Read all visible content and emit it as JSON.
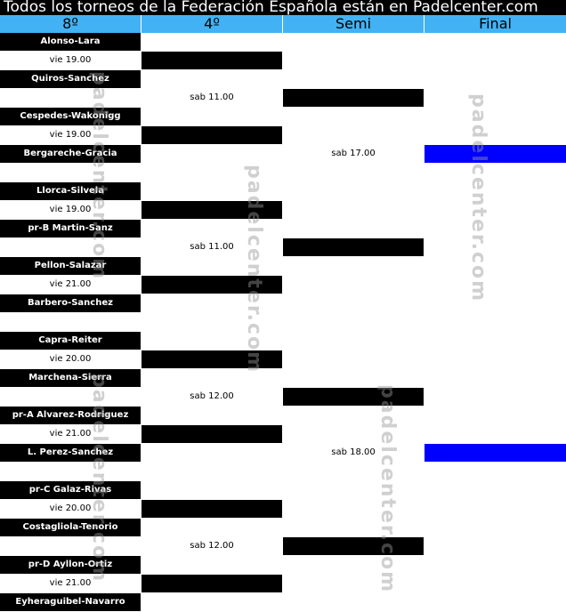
{
  "title": "Todos los torneos de la Federación Española están en Padelcenter.com",
  "columns": [
    "8º",
    "4º",
    "Semi",
    "Final"
  ],
  "watermark": "padelcenter.com",
  "colors": {
    "header_bg": "#42b2f4",
    "team_bg": "#000000",
    "final_bar": "#0000ff"
  },
  "rows": [
    [
      {
        "t": "team",
        "v": "Alonso-Lara"
      },
      {},
      {},
      {}
    ],
    [
      {
        "t": "time",
        "v": "vie 19.00"
      },
      {
        "t": "bar"
      },
      {},
      {}
    ],
    [
      {
        "t": "team",
        "v": "Quiros-Sanchez"
      },
      {},
      {},
      {}
    ],
    [
      {},
      {
        "t": "time",
        "v": "sab 11.00"
      },
      {
        "t": "bar"
      },
      {}
    ],
    [
      {
        "t": "team",
        "v": "Cespedes-Wakonigg"
      },
      {},
      {},
      {}
    ],
    [
      {
        "t": "time",
        "v": "vie 19.00"
      },
      {
        "t": "bar"
      },
      {},
      {}
    ],
    [
      {
        "t": "team",
        "v": "Bergareche-Gracia"
      },
      {},
      {
        "t": "time",
        "v": "sab 17.00"
      },
      {
        "t": "final"
      }
    ],
    [
      {},
      {},
      {},
      {}
    ],
    [
      {
        "t": "team",
        "v": "Llorca-Silvela"
      },
      {},
      {},
      {}
    ],
    [
      {
        "t": "time",
        "v": "vie 19.00"
      },
      {
        "t": "bar"
      },
      {},
      {}
    ],
    [
      {
        "t": "team",
        "v": "pr-B Martin-Sanz"
      },
      {},
      {},
      {}
    ],
    [
      {},
      {
        "t": "time",
        "v": "sab 11.00"
      },
      {
        "t": "bar"
      },
      {}
    ],
    [
      {
        "t": "team",
        "v": "Pellon-Salazar"
      },
      {},
      {},
      {}
    ],
    [
      {
        "t": "time",
        "v": "vie 21.00"
      },
      {
        "t": "bar"
      },
      {},
      {}
    ],
    [
      {
        "t": "team",
        "v": "Barbero-Sanchez"
      },
      {},
      {},
      {}
    ],
    [
      {},
      {},
      {},
      {}
    ],
    [
      {
        "t": "team",
        "v": "Capra-Reiter"
      },
      {},
      {},
      {}
    ],
    [
      {
        "t": "time",
        "v": "vie 20.00"
      },
      {
        "t": "bar"
      },
      {},
      {}
    ],
    [
      {
        "t": "team",
        "v": "Marchena-Sierra"
      },
      {},
      {},
      {}
    ],
    [
      {},
      {
        "t": "time",
        "v": "sab 12.00"
      },
      {
        "t": "bar"
      },
      {}
    ],
    [
      {
        "t": "team",
        "v": "pr-A Alvarez-Rodriguez"
      },
      {},
      {},
      {}
    ],
    [
      {
        "t": "time",
        "v": "vie 21.00"
      },
      {
        "t": "bar"
      },
      {},
      {}
    ],
    [
      {
        "t": "team",
        "v": "L. Perez-Sanchez"
      },
      {},
      {
        "t": "time",
        "v": "sab 18.00"
      },
      {
        "t": "final"
      }
    ],
    [
      {},
      {},
      {},
      {}
    ],
    [
      {
        "t": "team",
        "v": "pr-C Galaz-Rivas"
      },
      {},
      {},
      {}
    ],
    [
      {
        "t": "time",
        "v": "vie 20.00"
      },
      {
        "t": "bar"
      },
      {},
      {}
    ],
    [
      {
        "t": "team",
        "v": "Costagliola-Tenorio"
      },
      {},
      {},
      {}
    ],
    [
      {},
      {
        "t": "time",
        "v": "sab 12.00"
      },
      {
        "t": "bar"
      },
      {}
    ],
    [
      {
        "t": "team",
        "v": "pr-D Ayllon-Ortiz"
      },
      {},
      {},
      {}
    ],
    [
      {
        "t": "time",
        "v": "vie 21.00"
      },
      {
        "t": "bar"
      },
      {},
      {}
    ],
    [
      {
        "t": "team",
        "v": "Eyheraguibel-Navarro"
      },
      {},
      {},
      {}
    ]
  ]
}
